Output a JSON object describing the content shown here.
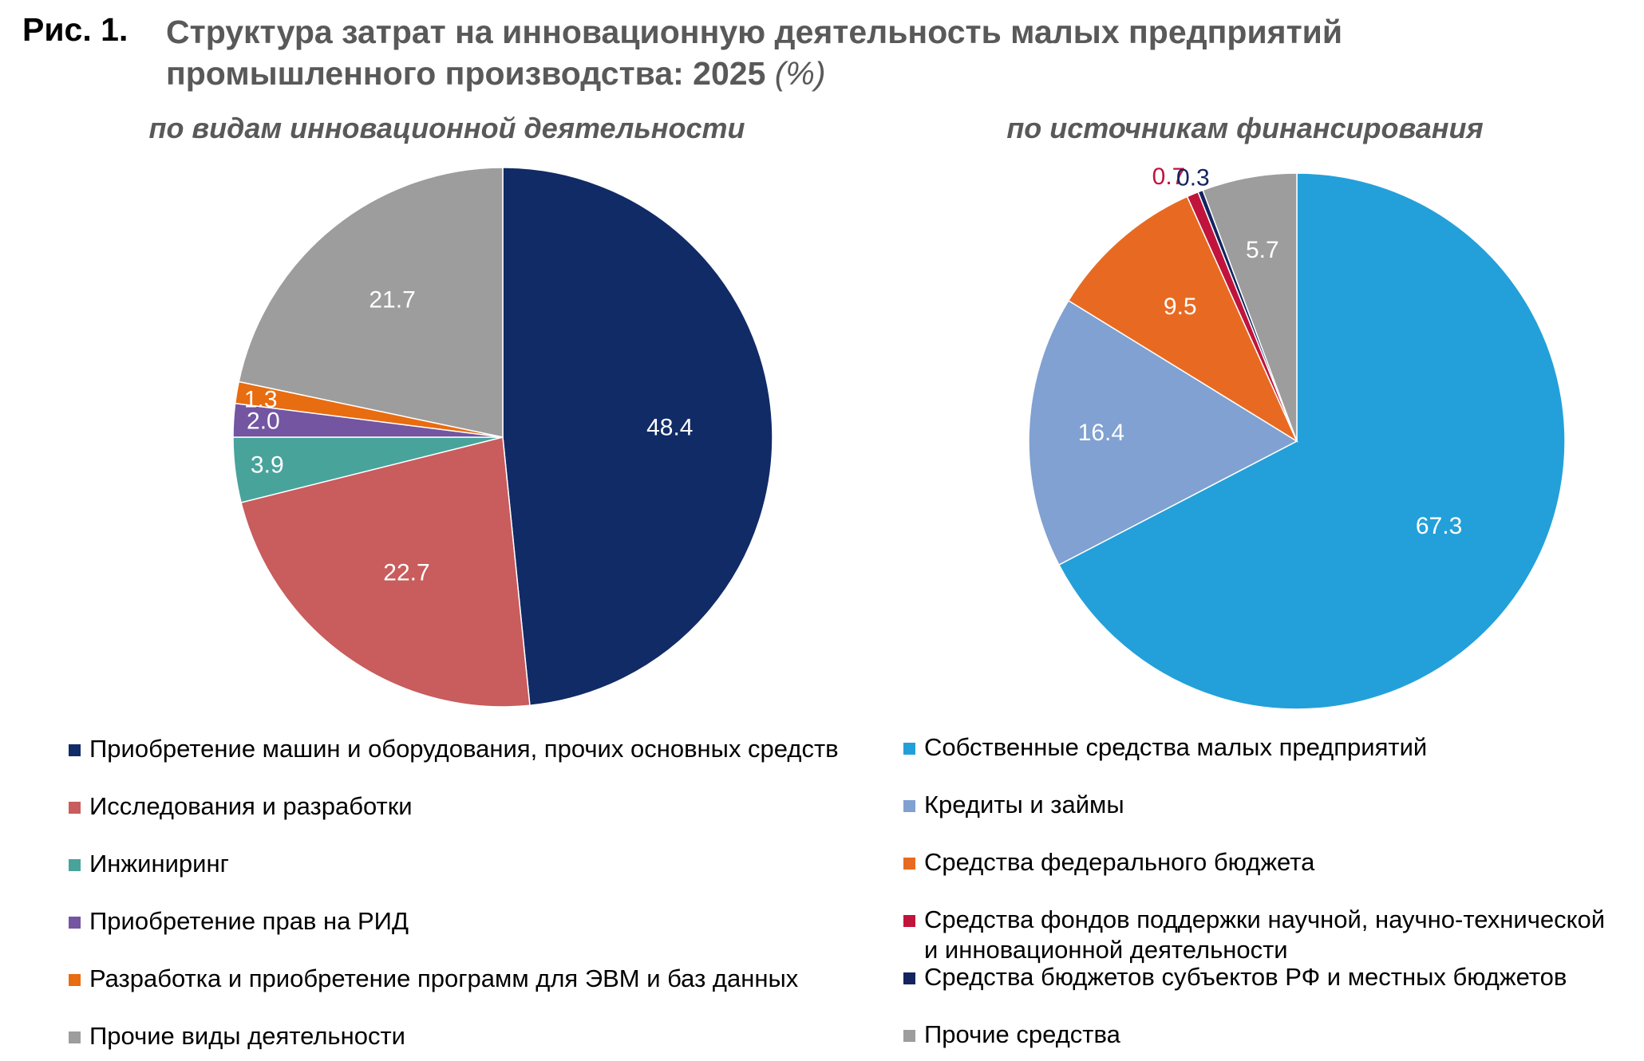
{
  "figure": {
    "number": "Рис. 1.",
    "title_line1": "Структура затрат на инновационную деятельность малых предприятий",
    "title_line2": "промышленного производства: 2025",
    "unit": "(%)"
  },
  "chart_data": [
    {
      "type": "pie",
      "title": "по видам инновационной деятельности",
      "slices": [
        {
          "label": "Приобретение машин и оборудования, прочих основных средств",
          "value": 48.4,
          "display": "48.4",
          "color": "#112b66",
          "label_color": "#ffffff"
        },
        {
          "label": "Исследования и разработки",
          "value": 22.7,
          "display": "22.7",
          "color": "#c95c5c",
          "label_color": "#ffffff"
        },
        {
          "label": "Инжиниринг",
          "value": 3.9,
          "display": "3.9",
          "color": "#48a39b",
          "label_color": "#ffffff"
        },
        {
          "label": "Приобретение прав на РИД",
          "value": 2.0,
          "display": "2.0",
          "color": "#7355a2",
          "label_color": "#ffffff"
        },
        {
          "label": "Разработка и приобретение программ для ЭВМ и баз данных",
          "value": 1.3,
          "display": "1.3",
          "color": "#e86c10",
          "label_color": "#ffffff"
        },
        {
          "label": "Прочие виды деятельности",
          "value": 21.7,
          "display": "21.7",
          "color": "#9d9d9d",
          "label_color": "#ffffff"
        }
      ]
    },
    {
      "type": "pie",
      "title": "по источникам финансирования",
      "slices": [
        {
          "label": "Собственные средства малых предприятий",
          "value": 67.3,
          "display": "67.3",
          "color": "#23a0d9",
          "label_color": "#ffffff"
        },
        {
          "label": "Кредиты и займы",
          "value": 16.4,
          "display": "16.4",
          "color": "#80a1d1",
          "label_color": "#ffffff"
        },
        {
          "label": "Средства федерального бюджета",
          "value": 9.5,
          "display": "9.5",
          "color": "#e86a22",
          "label_color": "#ffffff"
        },
        {
          "label": "Средства фондов поддержки научной, научно-технической\nи инновационной деятельности",
          "value": 0.7,
          "display": "0.7",
          "color": "#c0143c",
          "label_color": "#c0143c"
        },
        {
          "label": "Средства бюджетов субъектов РФ и местных бюджетов",
          "value": 0.3,
          "display": "0.3",
          "color": "#13245e",
          "label_color": "#13245e"
        },
        {
          "label": "Прочие средства",
          "value": 5.7,
          "display": "5.7",
          "color": "#9d9d9d",
          "label_color": "#ffffff"
        }
      ]
    }
  ]
}
